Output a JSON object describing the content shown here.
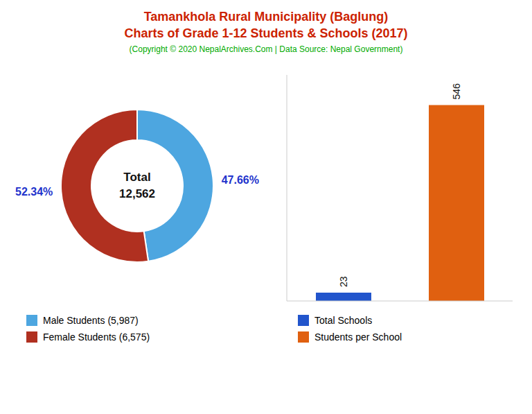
{
  "chart_data": [
    {
      "type": "pie",
      "title": "Tamankhola Rural Municipality (Baglung)\nCharts of Grade 1-12 Students & Schools (2017)",
      "subtitle": "(Copyright © 2020 NepalArchives.Com | Data Source: Nepal Government)",
      "categories": [
        "Male Students (5,987)",
        "Female Students (6,575)"
      ],
      "values": [
        47.66,
        52.34
      ],
      "value_labels": [
        "47.66%",
        "52.34%"
      ],
      "colors": [
        "#4da6e0",
        "#b03020"
      ],
      "data_labels": true,
      "legend": "bottom",
      "annotations": [
        "Total\n12,562"
      ]
    },
    {
      "type": "bar",
      "categories": [
        "Total Schools",
        "Students per School"
      ],
      "values": [
        23,
        546
      ],
      "colors": [
        "#2255cc",
        "#e06010"
      ],
      "ylim": [
        0,
        630
      ],
      "data_labels": true,
      "tick_labels": false,
      "legend": "bottom",
      "grid": false
    }
  ]
}
